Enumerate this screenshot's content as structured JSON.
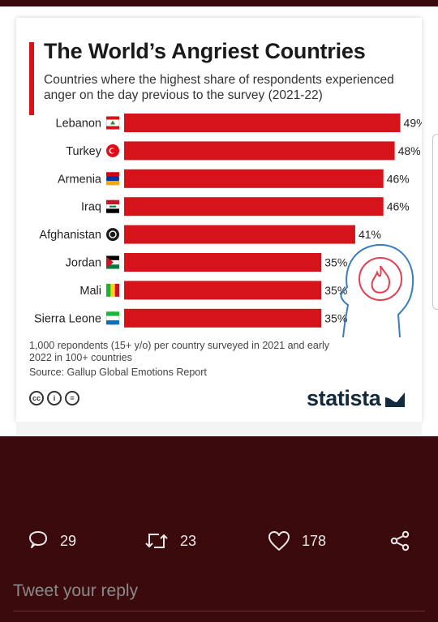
{
  "infographic": {
    "title": "The World’s Angriest Countries",
    "subtitle": "Countries where the highest share of respondents experienced anger on the day previous to the survey (2021-22)",
    "note": "1,000 repondents (15+ y/o) per country surveyed in 2021 and early 2022 in 100+ countries",
    "source": "Source: Gallup Global Emotions Report",
    "license_icons": [
      "cc-icon",
      "attribution-icon",
      "no-derivatives-icon"
    ],
    "logo": "statista",
    "bar_color": "#d6131b",
    "illustration": "angry-head-flame-icon"
  },
  "chart_data": {
    "type": "bar",
    "orientation": "horizontal",
    "title": "The World’s Angriest Countries",
    "categories": [
      "Lebanon",
      "Turkey",
      "Armenia",
      "Iraq",
      "Afghanistan",
      "Jordan",
      "Mali",
      "Sierra Leone"
    ],
    "values": [
      49,
      48,
      46,
      46,
      41,
      35,
      35,
      35
    ],
    "value_labels": [
      "49%",
      "48%",
      "46%",
      "46%",
      "41%",
      "35%",
      "35%",
      "35%"
    ],
    "unit": "%",
    "grid": false,
    "legend": "none"
  },
  "tweet_actions": {
    "reply_count": "29",
    "retweet_count": "23",
    "like_count": "178"
  },
  "reply_box": {
    "placeholder": "Tweet your reply"
  },
  "colors": {
    "background": "#3a0a0c",
    "accent": "#d6131b",
    "icon": "#e8e8e8"
  }
}
